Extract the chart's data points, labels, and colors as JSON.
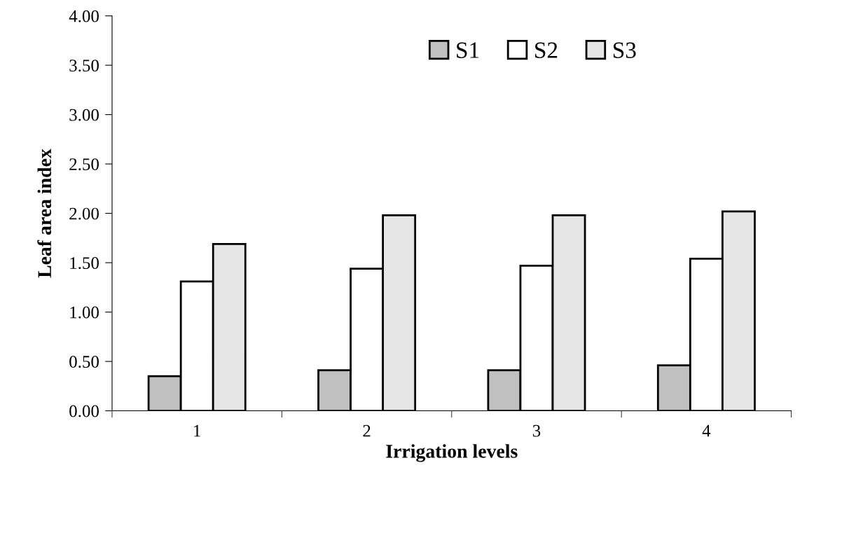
{
  "chart_data": {
    "type": "bar",
    "xlabel": "Irrigation levels",
    "ylabel": "Leaf area index",
    "categories": [
      "1",
      "2",
      "3",
      "4"
    ],
    "series": [
      {
        "name": "S1",
        "color": "#c0c0c0",
        "values": [
          0.35,
          0.41,
          0.41,
          0.46
        ]
      },
      {
        "name": "S2",
        "color": "#ffffff",
        "values": [
          1.31,
          1.44,
          1.47,
          1.54
        ]
      },
      {
        "name": "S3",
        "color": "#e6e6e6",
        "values": [
          1.69,
          1.98,
          1.98,
          2.02
        ]
      }
    ],
    "ylim": [
      0,
      4
    ],
    "yticks": [
      {
        "value": 0,
        "label": "0.00"
      },
      {
        "value": 0.5,
        "label": "0.50"
      },
      {
        "value": 1,
        "label": "1.00"
      },
      {
        "value": 1.5,
        "label": "1.50"
      },
      {
        "value": 2,
        "label": "2.00"
      },
      {
        "value": 2.5,
        "label": "2.50"
      },
      {
        "value": 3,
        "label": "3.00"
      },
      {
        "value": 3.5,
        "label": "3.50"
      },
      {
        "value": 4,
        "label": "4.00"
      }
    ],
    "grid": false,
    "legend": "top"
  }
}
